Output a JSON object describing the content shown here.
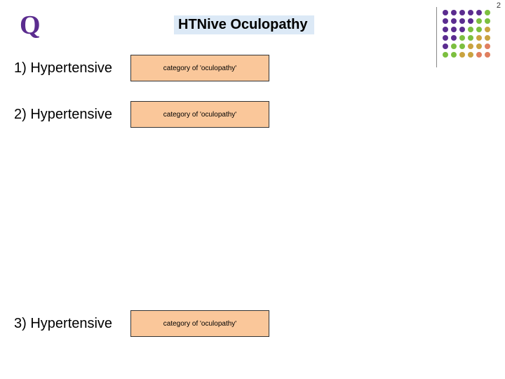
{
  "page_number": "2",
  "q_label": "Q",
  "title": "HTNive Oculopathy",
  "items": [
    {
      "label": "1) Hypertensive",
      "box": "category of 'oculopathy'"
    },
    {
      "label": "2) Hypertensive",
      "box": "category of 'oculopathy'"
    },
    {
      "label": "3) Hypertensive",
      "box": "category of 'oculopathy'"
    }
  ],
  "colors": {
    "q_color": "#5b2c8f",
    "title_bg": "#dce9f6",
    "box_bg": "#fac79a",
    "box_border": "#333333"
  },
  "dot_grid": {
    "colors": [
      [
        "#5b2c8f",
        "#5b2c8f",
        "#5b2c8f",
        "#5b2c8f",
        "#5b2c8f",
        "#7cbf3f"
      ],
      [
        "#5b2c8f",
        "#5b2c8f",
        "#5b2c8f",
        "#5b2c8f",
        "#7cbf3f",
        "#7cbf3f"
      ],
      [
        "#5b2c8f",
        "#5b2c8f",
        "#5b2c8f",
        "#7cbf3f",
        "#7cbf3f",
        "#c9a33f"
      ],
      [
        "#5b2c8f",
        "#5b2c8f",
        "#7cbf3f",
        "#7cbf3f",
        "#c9a33f",
        "#c9a33f"
      ],
      [
        "#5b2c8f",
        "#7cbf3f",
        "#7cbf3f",
        "#c9a33f",
        "#c9a33f",
        "#e07f5f"
      ],
      [
        "#7cbf3f",
        "#7cbf3f",
        "#c9a33f",
        "#c9a33f",
        "#e07f5f",
        "#e07f5f"
      ]
    ]
  }
}
